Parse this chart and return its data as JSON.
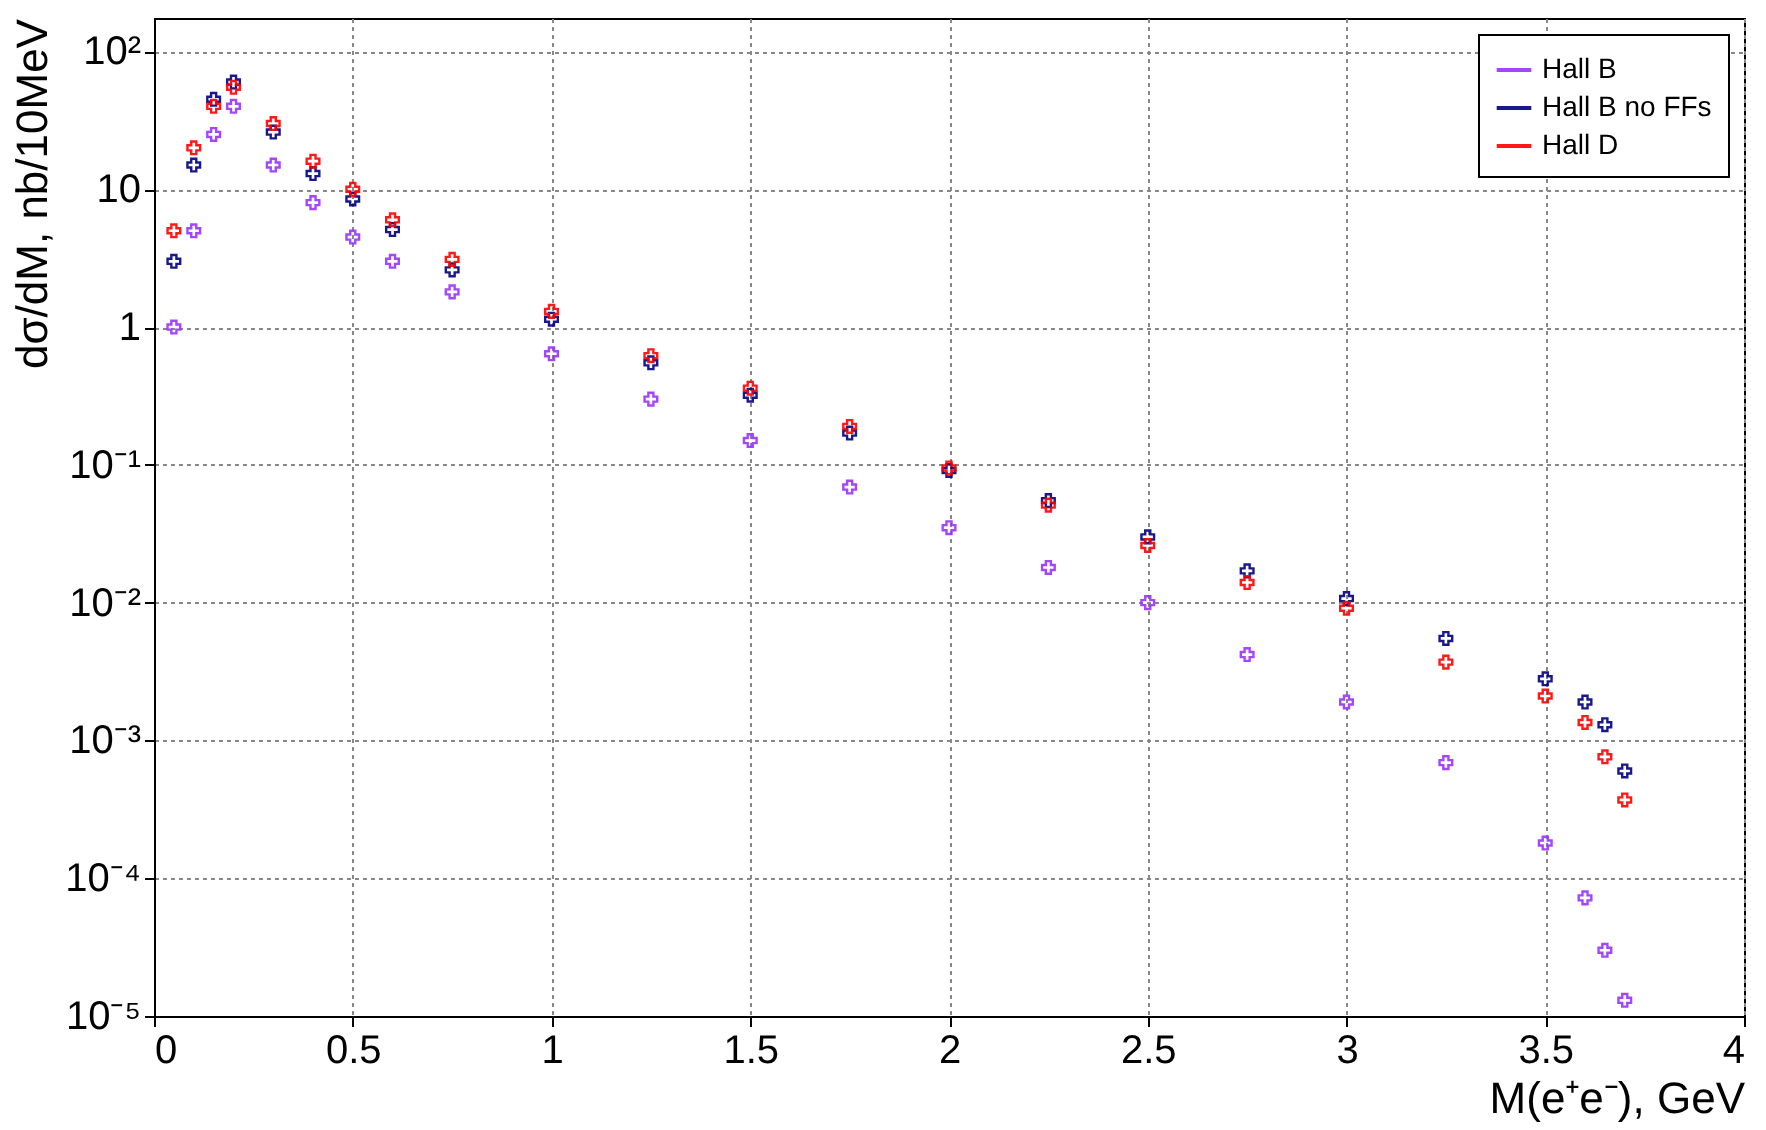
{
  "chart_data": {
    "type": "scatter",
    "xlabel": "M(e⁺e⁻), GeV",
    "ylabel": "dσ/dM, nb/10MeV",
    "log": "y",
    "grid": true,
    "legend": "top right",
    "marker": "cross",
    "xlim": [
      0,
      4
    ],
    "xticks": [
      0,
      0.5,
      1,
      1.5,
      2,
      2.5,
      3,
      3.5,
      4
    ],
    "ylim": [
      1e-05,
      175
    ],
    "yticks": [
      {
        "value": 1e-05,
        "label": "10⁻⁵"
      },
      {
        "value": 0.0001,
        "label": "10⁻⁴"
      },
      {
        "value": 0.001,
        "label": "10⁻³"
      },
      {
        "value": 0.01,
        "label": "10⁻²"
      },
      {
        "value": 0.1,
        "label": "10⁻¹"
      },
      1,
      10,
      {
        "value": 100,
        "label": "10²"
      }
    ],
    "x": [
      0.05,
      0.1,
      0.15,
      0.2,
      0.3,
      0.4,
      0.5,
      0.6,
      0.75,
      1.0,
      1.25,
      1.5,
      1.75,
      2.0,
      2.25,
      2.5,
      2.75,
      3.0,
      3.25,
      3.5,
      3.6,
      3.65,
      3.7
    ],
    "series": [
      {
        "name": "Hall B",
        "color": "#9933ff",
        "values": [
          1,
          5,
          25,
          40,
          15,
          8,
          4.5,
          3,
          1.8,
          0.64,
          0.3,
          0.15,
          0.069,
          0.035,
          0.018,
          0.01,
          0.0042,
          0.0019,
          0.00069,
          0.00018,
          7.2e-05,
          3e-05,
          1.3e-05
        ]
      },
      {
        "name": "Hall B no FFs",
        "color": "#000080",
        "values": [
          3,
          15,
          45,
          60,
          26,
          13,
          8.5,
          5.1,
          2.6,
          1.14,
          0.55,
          0.32,
          0.17,
          0.091,
          0.055,
          0.03,
          0.017,
          0.0107,
          0.0055,
          0.0028,
          0.0019,
          0.0013,
          0.0006
        ]
      },
      {
        "name": "Hall D",
        "color": "#ff0000",
        "values": [
          5,
          20,
          40,
          55,
          30,
          16,
          10,
          6,
          3.1,
          1.3,
          0.62,
          0.36,
          0.19,
          0.095,
          0.051,
          0.026,
          0.014,
          0.0091,
          0.0037,
          0.0021,
          0.00135,
          0.00076,
          0.00037
        ]
      }
    ]
  }
}
